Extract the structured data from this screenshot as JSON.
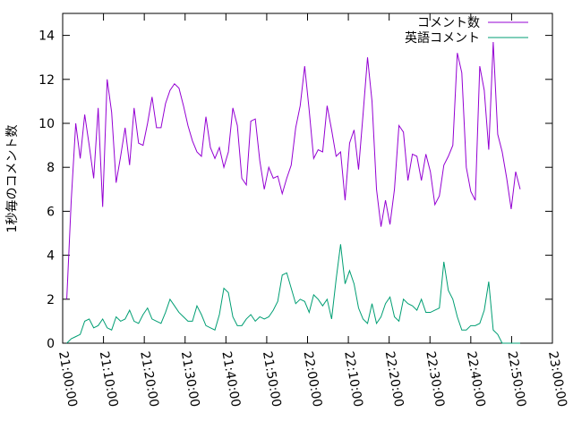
{
  "chart_data": {
    "type": "line",
    "y_label": "1秒毎のコメント数",
    "x": [
      "21:01:00",
      "21:02:06",
      "21:03:12",
      "21:04:18",
      "21:05:24",
      "21:06:30",
      "21:07:36",
      "21:08:42",
      "21:09:48",
      "21:10:54",
      "21:12:00",
      "21:13:06",
      "21:14:12",
      "21:15:18",
      "21:16:24",
      "21:17:30",
      "21:18:36",
      "21:19:42",
      "21:20:48",
      "21:21:54",
      "21:23:00",
      "21:24:06",
      "21:25:12",
      "21:26:18",
      "21:27:24",
      "21:28:30",
      "21:29:36",
      "21:30:42",
      "21:31:48",
      "21:32:54",
      "21:34:00",
      "21:35:06",
      "21:36:12",
      "21:37:18",
      "21:38:24",
      "21:39:30",
      "21:40:36",
      "21:41:42",
      "21:42:48",
      "21:43:54",
      "21:45:00",
      "21:46:06",
      "21:47:12",
      "21:48:18",
      "21:49:24",
      "21:50:30",
      "21:51:36",
      "21:52:42",
      "21:53:48",
      "21:54:54",
      "21:56:00",
      "21:57:06",
      "21:58:12",
      "21:59:18",
      "22:00:24",
      "22:01:30",
      "22:02:36",
      "22:03:42",
      "22:04:48",
      "22:05:54",
      "22:07:00",
      "22:08:06",
      "22:09:12",
      "22:10:18",
      "22:11:24",
      "22:12:30",
      "22:13:36",
      "22:14:42",
      "22:15:48",
      "22:16:54",
      "22:18:00",
      "22:19:06",
      "22:20:12",
      "22:21:18",
      "22:22:24",
      "22:23:30",
      "22:24:36",
      "22:25:42",
      "22:26:48",
      "22:27:54",
      "22:29:00",
      "22:30:06",
      "22:31:12",
      "22:32:18",
      "22:33:24",
      "22:34:30",
      "22:35:36",
      "22:36:42",
      "22:37:48",
      "22:38:54",
      "22:40:00",
      "22:41:06",
      "22:42:12",
      "22:43:18",
      "22:44:24",
      "22:45:30",
      "22:46:36",
      "22:47:42",
      "22:48:48",
      "22:49:54",
      "22:51:00",
      "22:52:06"
    ],
    "series": [
      {
        "name": "コメント数",
        "color": "#9400d3",
        "values": [
          2.0,
          6.5,
          10.0,
          8.4,
          10.4,
          9.0,
          7.5,
          10.7,
          6.2,
          12.0,
          10.5,
          7.3,
          8.5,
          9.8,
          8.1,
          10.7,
          9.1,
          9.0,
          10.0,
          11.2,
          9.8,
          9.8,
          10.9,
          11.5,
          11.8,
          11.6,
          10.8,
          9.9,
          9.2,
          8.7,
          8.5,
          10.3,
          8.9,
          8.4,
          8.9,
          8.0,
          8.7,
          10.7,
          9.9,
          7.5,
          7.2,
          10.1,
          10.2,
          8.3,
          7.0,
          8.0,
          7.5,
          7.6,
          6.8,
          7.5,
          8.1,
          9.8,
          10.8,
          12.6,
          10.6,
          8.4,
          8.8,
          8.7,
          10.8,
          9.7,
          8.5,
          8.7,
          6.5,
          9.1,
          9.7,
          7.9,
          10.4,
          13.0,
          11.0,
          7.0,
          5.3,
          6.5,
          5.4,
          7.0,
          9.9,
          9.6,
          7.4,
          8.6,
          8.5,
          7.4,
          8.6,
          7.8,
          6.3,
          6.7,
          8.1,
          8.5,
          9.0,
          13.2,
          12.3,
          8.0,
          6.9,
          6.5,
          12.6,
          11.5,
          8.8,
          13.7,
          9.5,
          8.7,
          7.5,
          6.1,
          7.8,
          7.0
        ]
      },
      {
        "name": "英語コメント",
        "color": "#009e73",
        "values": [
          0.0,
          0.2,
          0.3,
          0.4,
          1.0,
          1.1,
          0.7,
          0.8,
          1.1,
          0.7,
          0.6,
          1.2,
          1.0,
          1.1,
          1.5,
          1.0,
          0.9,
          1.3,
          1.6,
          1.1,
          1.0,
          0.9,
          1.4,
          2.0,
          1.7,
          1.4,
          1.2,
          1.0,
          1.0,
          1.7,
          1.3,
          0.8,
          0.7,
          0.6,
          1.3,
          2.5,
          2.3,
          1.2,
          0.8,
          0.8,
          1.1,
          1.3,
          1.0,
          1.2,
          1.1,
          1.2,
          1.5,
          1.9,
          3.1,
          3.2,
          2.5,
          1.8,
          2.0,
          1.9,
          1.4,
          2.2,
          2.0,
          1.7,
          2.0,
          1.1,
          2.9,
          4.5,
          2.7,
          3.3,
          2.7,
          1.6,
          1.1,
          0.9,
          1.8,
          0.9,
          1.2,
          1.8,
          2.1,
          1.2,
          1.0,
          2.0,
          1.8,
          1.7,
          1.5,
          2.0,
          1.4,
          1.4,
          1.5,
          1.6,
          3.7,
          2.4,
          2.0,
          1.2,
          0.6,
          0.6,
          0.8,
          0.8,
          0.9,
          1.5,
          2.8,
          0.6,
          0.4,
          0.0,
          0.0,
          0.0,
          0.0,
          0.0
        ]
      }
    ],
    "xlim": [
      "21:00:00",
      "23:00:00"
    ],
    "xticks": [
      "21:00:00",
      "21:10:00",
      "21:20:00",
      "21:30:00",
      "21:40:00",
      "21:50:00",
      "22:00:00",
      "22:10:00",
      "22:20:00",
      "22:30:00",
      "22:40:00",
      "22:50:00",
      "23:00:00"
    ],
    "ylim": [
      0,
      15
    ],
    "yticks": [
      0,
      2,
      4,
      6,
      8,
      10,
      12,
      14
    ],
    "legend": "top-right"
  }
}
